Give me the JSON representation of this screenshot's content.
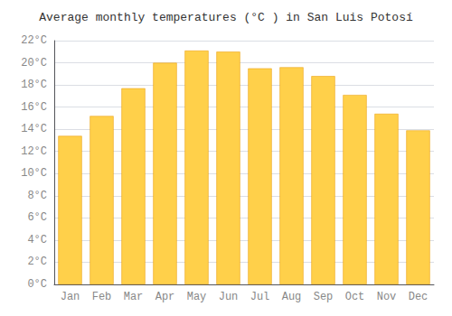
{
  "chart_data": {
    "type": "bar",
    "title": "Average monthly temperatures (°C ) in San Luis Potosí",
    "categories": [
      "Jan",
      "Feb",
      "Mar",
      "Apr",
      "May",
      "Jun",
      "Jul",
      "Aug",
      "Sep",
      "Oct",
      "Nov",
      "Dec"
    ],
    "values": [
      13.4,
      15.2,
      17.7,
      20.0,
      21.1,
      21.0,
      19.5,
      19.6,
      18.8,
      17.1,
      15.4,
      13.9
    ],
    "color": "#FFD04A",
    "ylim": [
      0,
      22
    ],
    "yticks": [
      {
        "value": 0,
        "label": "0°C"
      },
      {
        "value": 2,
        "label": "2°C"
      },
      {
        "value": 4,
        "label": "4°C"
      },
      {
        "value": 6,
        "label": "6°C"
      },
      {
        "value": 8,
        "label": "8°C"
      },
      {
        "value": 10,
        "label": "10°C"
      },
      {
        "value": 12,
        "label": "12°C"
      },
      {
        "value": 14,
        "label": "14°C"
      },
      {
        "value": 16,
        "label": "16°C"
      },
      {
        "value": 18,
        "label": "18°C"
      },
      {
        "value": 20,
        "label": "20°C"
      },
      {
        "value": 22,
        "label": "22°C"
      }
    ],
    "grid": true
  }
}
